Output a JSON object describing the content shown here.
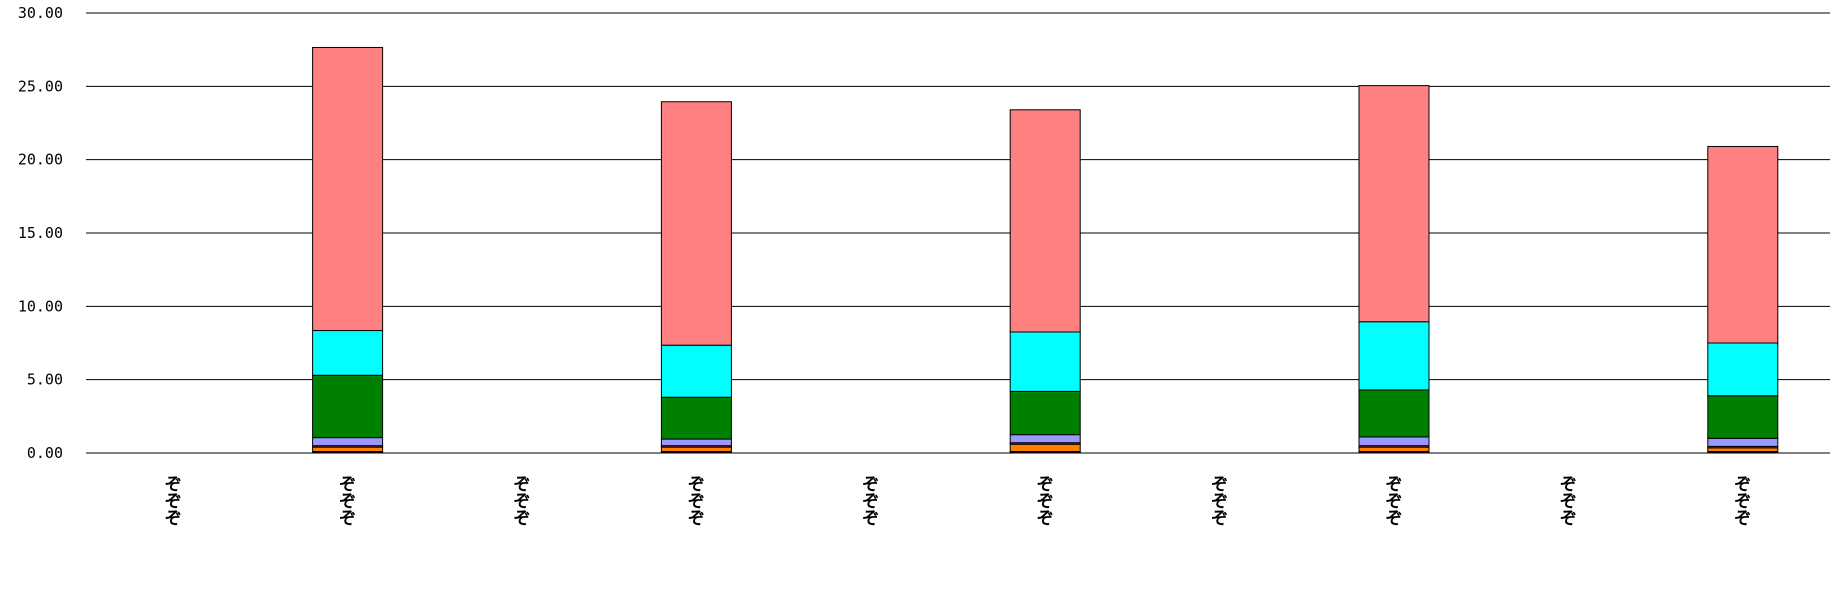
{
  "chart_data": {
    "type": "bar",
    "stacked": true,
    "ylim": [
      0,
      30
    ],
    "yticks": [
      "0.00",
      "5.00",
      "10.00",
      "15.00",
      "20.00",
      "25.00",
      "30.00"
    ],
    "ytick_values": [
      0,
      5,
      10,
      15,
      20,
      25,
      30
    ],
    "grid": true,
    "legend": "none",
    "categories": [
      "ぞぞぞ",
      "ぞぞぞ",
      "ぞぞぞ",
      "ぞぞぞ",
      "ぞぞぞ",
      "ぞぞぞ",
      "ぞぞぞ",
      "ぞぞぞ",
      "ぞぞぞ",
      "ぞぞぞ"
    ],
    "series": [
      {
        "color": "#000000",
        "values": [
          0,
          0.1,
          0,
          0.1,
          0,
          0.1,
          0,
          0.1,
          0,
          0.1
        ]
      },
      {
        "color": "#FF8000",
        "values": [
          0,
          0.3,
          0,
          0.3,
          0,
          0.5,
          0,
          0.3,
          0,
          0.25
        ]
      },
      {
        "color": "#CC3333",
        "values": [
          0,
          0.1,
          0,
          0.1,
          0,
          0.1,
          0,
          0.1,
          0,
          0.1
        ]
      },
      {
        "color": "#9999FF",
        "values": [
          0,
          0.55,
          0,
          0.45,
          0,
          0.55,
          0,
          0.6,
          0,
          0.55
        ]
      },
      {
        "color": "#008000",
        "values": [
          0,
          4.25,
          0,
          2.85,
          0,
          2.95,
          0,
          3.2,
          0,
          2.9
        ]
      },
      {
        "color": "#00FFFF",
        "values": [
          0,
          3.05,
          0,
          3.55,
          0,
          4.05,
          0,
          4.65,
          0,
          3.6
        ]
      },
      {
        "color": "#FF8080",
        "values": [
          0,
          19.3,
          0,
          16.6,
          0,
          15.15,
          0,
          16.1,
          0,
          13.4
        ]
      }
    ]
  }
}
